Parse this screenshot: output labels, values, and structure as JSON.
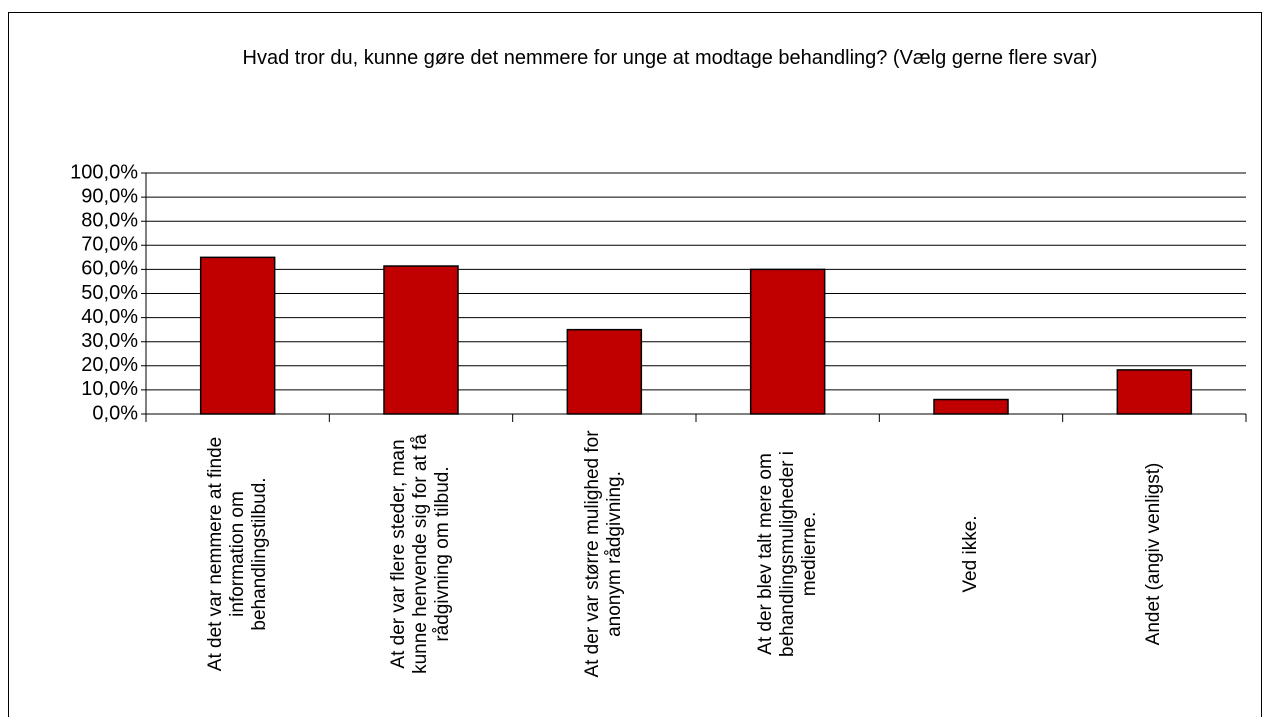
{
  "chart_data": {
    "type": "bar",
    "title": "Hvad tror du, kunne gøre det nemmere for unge at modtage behandling? (Vælg gerne flere svar)",
    "categories": [
      "At det var nemmere at finde information om behandlingstilbud.",
      "At der var flere steder, man kunne henvende sig for at få rådgivning om tilbud.",
      "At der var større mulighed for anonym rådgivning.",
      "At der blev talt mere om behandlingsmuligheder i medierne.",
      "Ved ikke.",
      "Andet (angiv venligst)"
    ],
    "values": [
      65,
      61.4,
      35,
      60,
      6,
      18.3
    ],
    "color": "#c00000",
    "ylim": [
      0,
      100
    ],
    "yticks": [
      {
        "value": 0,
        "label": "0,0%"
      },
      {
        "value": 10,
        "label": "10,0%"
      },
      {
        "value": 20,
        "label": "20,0%"
      },
      {
        "value": 30,
        "label": "30,0%"
      },
      {
        "value": 40,
        "label": "40,0%"
      },
      {
        "value": 50,
        "label": "50,0%"
      },
      {
        "value": 60,
        "label": "60,0%"
      },
      {
        "value": 70,
        "label": "70,0%"
      },
      {
        "value": 80,
        "label": "80,0%"
      },
      {
        "value": 90,
        "label": "90,0%"
      },
      {
        "value": 100,
        "label": "100,0%"
      }
    ],
    "grid": true
  }
}
